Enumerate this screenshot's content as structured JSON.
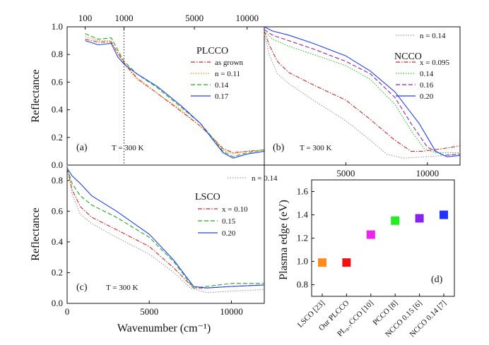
{
  "chart_data": [
    {
      "type": "line",
      "panel": "(a)",
      "title": "PLCCO",
      "annotation": "T = 300 K",
      "xlabel": "",
      "ylabel": "Reflectance",
      "xlim": [
        0,
        12000
      ],
      "ylim": [
        0,
        1.0
      ],
      "x_ticks": [
        100,
        1000,
        5000,
        10000
      ],
      "y_ticks": [
        0.0,
        0.2,
        0.4,
        0.6,
        0.8,
        1.0
      ],
      "x_scale": "sqrt",
      "marker_line_x": 1000,
      "legend": "right",
      "series": [
        {
          "name": "as grown",
          "color": "#d62728",
          "dash": "dashdot",
          "points": [
            [
              100,
              0.91
            ],
            [
              300,
              0.89
            ],
            [
              600,
              0.89
            ],
            [
              800,
              0.81
            ],
            [
              1000,
              0.74
            ],
            [
              1500,
              0.63
            ],
            [
              2500,
              0.52
            ],
            [
              4000,
              0.39
            ],
            [
              5500,
              0.28
            ],
            [
              6500,
              0.2
            ],
            [
              7500,
              0.12
            ],
            [
              8500,
              0.09
            ],
            [
              10000,
              0.1
            ],
            [
              12000,
              0.11
            ]
          ]
        },
        {
          "name": "n = 0.11",
          "color": "#ff8c00",
          "dash": "dot",
          "points": [
            [
              100,
              0.93
            ],
            [
              300,
              0.9
            ],
            [
              600,
              0.9
            ],
            [
              800,
              0.8
            ],
            [
              1000,
              0.73
            ],
            [
              1500,
              0.62
            ],
            [
              2500,
              0.52
            ],
            [
              4000,
              0.4
            ],
            [
              5500,
              0.28
            ],
            [
              6500,
              0.2
            ],
            [
              7500,
              0.11
            ],
            [
              8500,
              0.08
            ],
            [
              10000,
              0.1
            ],
            [
              12000,
              0.11
            ]
          ]
        },
        {
          "name": "0.14",
          "color": "#22aa22",
          "dash": "dash",
          "points": [
            [
              100,
              0.95
            ],
            [
              300,
              0.91
            ],
            [
              600,
              0.92
            ],
            [
              800,
              0.83
            ],
            [
              1000,
              0.75
            ],
            [
              1500,
              0.66
            ],
            [
              2500,
              0.56
            ],
            [
              4000,
              0.42
            ],
            [
              5500,
              0.3
            ],
            [
              6500,
              0.2
            ],
            [
              7500,
              0.1
            ],
            [
              8500,
              0.06
            ],
            [
              10000,
              0.09
            ],
            [
              12000,
              0.11
            ]
          ]
        },
        {
          "name": "0.17",
          "color": "#1f3fff",
          "dash": "solid",
          "points": [
            [
              100,
              0.9
            ],
            [
              300,
              0.87
            ],
            [
              600,
              0.88
            ],
            [
              800,
              0.78
            ],
            [
              1000,
              0.73
            ],
            [
              1500,
              0.66
            ],
            [
              2500,
              0.57
            ],
            [
              4000,
              0.43
            ],
            [
              5500,
              0.3
            ],
            [
              6500,
              0.19
            ],
            [
              7500,
              0.09
            ],
            [
              8500,
              0.05
            ],
            [
              10000,
              0.08
            ],
            [
              12000,
              0.1
            ]
          ]
        }
      ]
    },
    {
      "type": "line",
      "panel": "(b)",
      "title": "NCCO",
      "annotation": "T = 300 K",
      "xlabel": "",
      "ylabel": "",
      "xlim": [
        0,
        12000
      ],
      "ylim": [
        0,
        1.0
      ],
      "x_ticks": [
        5000,
        10000
      ],
      "legend": "right",
      "series": [
        {
          "name": "n = 0.14",
          "color": "#9a9a9a",
          "dash": "dot",
          "points": [
            [
              0,
              0.95
            ],
            [
              300,
              0.8
            ],
            [
              800,
              0.66
            ],
            [
              1500,
              0.59
            ],
            [
              3000,
              0.47
            ],
            [
              5000,
              0.32
            ],
            [
              6500,
              0.18
            ],
            [
              7500,
              0.08
            ],
            [
              8500,
              0.05
            ],
            [
              10000,
              0.06
            ],
            [
              12000,
              0.08
            ]
          ]
        },
        {
          "name": "x = 0.095",
          "color": "#d62728",
          "dash": "dashdot",
          "points": [
            [
              0,
              0.97
            ],
            [
              300,
              0.87
            ],
            [
              800,
              0.75
            ],
            [
              1500,
              0.67
            ],
            [
              3000,
              0.58
            ],
            [
              5000,
              0.47
            ],
            [
              6500,
              0.33
            ],
            [
              8000,
              0.18
            ],
            [
              9000,
              0.1
            ],
            [
              9700,
              0.1
            ],
            [
              11000,
              0.12
            ],
            [
              12000,
              0.14
            ]
          ]
        },
        {
          "name": "0.14",
          "color": "#22cc22",
          "dash": "dot",
          "points": [
            [
              0,
              0.97
            ],
            [
              500,
              0.91
            ],
            [
              1500,
              0.86
            ],
            [
              3000,
              0.8
            ],
            [
              5000,
              0.72
            ],
            [
              6500,
              0.62
            ],
            [
              8000,
              0.44
            ],
            [
              9000,
              0.25
            ],
            [
              9800,
              0.12
            ],
            [
              10500,
              0.09
            ],
            [
              12000,
              0.09
            ]
          ]
        },
        {
          "name": "0.16",
          "color": "#a020a0",
          "dash": "dash",
          "points": [
            [
              0,
              0.98
            ],
            [
              500,
              0.94
            ],
            [
              1500,
              0.9
            ],
            [
              3000,
              0.84
            ],
            [
              5000,
              0.75
            ],
            [
              6500,
              0.66
            ],
            [
              8000,
              0.49
            ],
            [
              9000,
              0.3
            ],
            [
              10000,
              0.13
            ],
            [
              11000,
              0.07
            ],
            [
              12000,
              0.08
            ]
          ]
        },
        {
          "name": "0.20",
          "color": "#1f3fff",
          "dash": "solid",
          "points": [
            [
              0,
              1.0
            ],
            [
              500,
              0.97
            ],
            [
              1500,
              0.94
            ],
            [
              3000,
              0.88
            ],
            [
              5000,
              0.79
            ],
            [
              6500,
              0.68
            ],
            [
              8000,
              0.53
            ],
            [
              9500,
              0.3
            ],
            [
              10500,
              0.1
            ],
            [
              11200,
              0.06
            ],
            [
              12000,
              0.07
            ]
          ]
        }
      ]
    },
    {
      "type": "line",
      "panel": "(c)",
      "title": "LSCO",
      "annotation": "T = 300 K",
      "xlabel": "Wavenumber (cm⁻¹)",
      "ylabel": "Reflectance",
      "xlim": [
        0,
        12000
      ],
      "ylim": [
        0,
        0.9
      ],
      "x_ticks": [
        0,
        5000,
        10000
      ],
      "y_ticks": [
        0.0,
        0.2,
        0.4,
        0.6,
        0.8
      ],
      "legend": "right",
      "series": [
        {
          "name": "n = 0.14",
          "color": "#9a9a9a",
          "dash": "dot",
          "points": [
            [
              0,
              0.9
            ],
            [
              300,
              0.71
            ],
            [
              800,
              0.58
            ],
            [
              1500,
              0.52
            ],
            [
              3000,
              0.43
            ],
            [
              5000,
              0.32
            ],
            [
              6500,
              0.2
            ],
            [
              7500,
              0.1
            ],
            [
              8500,
              0.07
            ],
            [
              10000,
              0.08
            ],
            [
              12000,
              0.09
            ]
          ]
        },
        {
          "name": "x = 0.10",
          "color": "#d62728",
          "dash": "dashdot",
          "points": [
            [
              0,
              0.88
            ],
            [
              300,
              0.74
            ],
            [
              800,
              0.63
            ],
            [
              1500,
              0.56
            ],
            [
              3000,
              0.48
            ],
            [
              5000,
              0.37
            ],
            [
              6500,
              0.23
            ],
            [
              7700,
              0.1
            ],
            [
              8500,
              0.1
            ],
            [
              10000,
              0.11
            ],
            [
              12000,
              0.12
            ]
          ]
        },
        {
          "name": "0.15",
          "color": "#22aa22",
          "dash": "dash",
          "points": [
            [
              0,
              0.88
            ],
            [
              300,
              0.78
            ],
            [
              800,
              0.7
            ],
            [
              1500,
              0.64
            ],
            [
              3000,
              0.56
            ],
            [
              5000,
              0.43
            ],
            [
              6500,
              0.27
            ],
            [
              7700,
              0.1
            ],
            [
              8500,
              0.11
            ],
            [
              10000,
              0.13
            ],
            [
              12000,
              0.13
            ]
          ]
        },
        {
          "name": "0.20",
          "color": "#1f3fff",
          "dash": "solid",
          "points": [
            [
              0,
              0.88
            ],
            [
              300,
              0.83
            ],
            [
              800,
              0.78
            ],
            [
              1500,
              0.7
            ],
            [
              3000,
              0.6
            ],
            [
              5000,
              0.45
            ],
            [
              6500,
              0.28
            ],
            [
              7700,
              0.11
            ],
            [
              8500,
              0.1
            ],
            [
              10000,
              0.11
            ],
            [
              12000,
              0.12
            ]
          ]
        }
      ]
    },
    {
      "type": "scatter",
      "panel": "(d)",
      "ylabel": "Plasma edge (eV)",
      "ylim": [
        0.7,
        1.7
      ],
      "y_ticks": [
        0.8,
        1.0,
        1.2,
        1.4,
        1.6
      ],
      "categories": [
        {
          "text": "LSCO [23]",
          "value": 0.99,
          "color": "#ff8c1a"
        },
        {
          "text": "Our PLCCO",
          "value": 0.99,
          "color": "#ee1111"
        },
        {
          "text": "PL₀.₇CCO [10]",
          "value": 1.23,
          "color": "#ee22ee"
        },
        {
          "text": "PCCO [8]",
          "value": 1.35,
          "color": "#22ee22"
        },
        {
          "text": "NCCO 0.15 [6]",
          "value": 1.37,
          "color": "#8822ee"
        },
        {
          "text": "NCCO 0.14 [7]",
          "value": 1.4,
          "color": "#2233ff"
        }
      ]
    }
  ]
}
